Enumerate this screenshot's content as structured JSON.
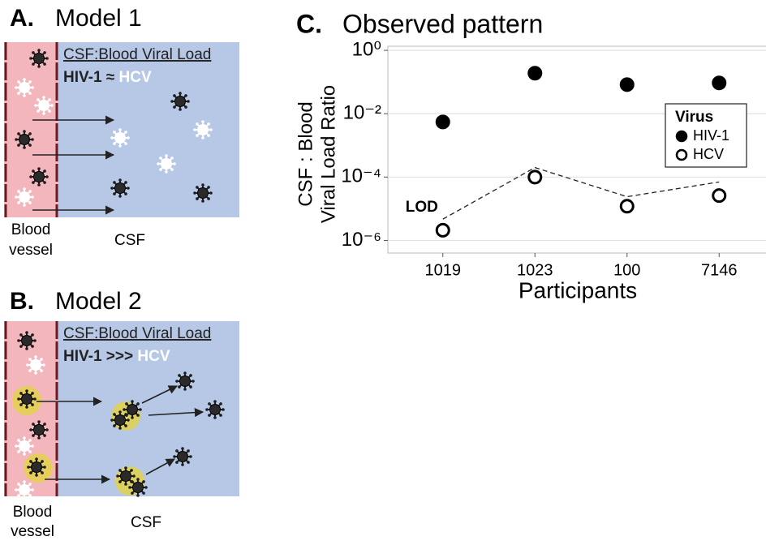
{
  "panel_a": {
    "letter": "A.",
    "title": "Model 1",
    "box_title": "CSF:Blood Viral Load",
    "relation": [
      "HIV-1",
      " ≈ ",
      "HCV"
    ],
    "vessel_label": [
      "Blood",
      "vessel"
    ],
    "csf_label": "CSF"
  },
  "panel_b": {
    "letter": "B.",
    "title": "Model 2",
    "box_title": "CSF:Blood Viral Load",
    "relation": [
      "HIV-1",
      " >>> ",
      "HCV"
    ],
    "vessel_label": [
      "Blood",
      "vessel"
    ],
    "csf_label": "CSF"
  },
  "chart_data": {
    "type": "scatter",
    "letter": "C.",
    "title": "Observed pattern",
    "x_label": "Participants",
    "y_label": [
      "CSF : Blood",
      "Viral Load Ratio"
    ],
    "categories": [
      "1019",
      "1023",
      "100",
      "7146"
    ],
    "yscale": "log",
    "ylim": [
      4e-07,
      1.35
    ],
    "yticks": [
      {
        "value": 1,
        "label": "10⁰"
      },
      {
        "value": 0.01,
        "label": "10⁻²"
      },
      {
        "value": 0.0001,
        "label": "10⁻⁴"
      },
      {
        "value": 1e-06,
        "label": "10⁻⁶"
      }
    ],
    "grid": true,
    "legend_title": "Virus",
    "legend_position": "right",
    "series": [
      {
        "name": "HIV-1",
        "color": "#000000",
        "marker": "filled",
        "values": [
          0.0055,
          0.19,
          0.083,
          0.094
        ]
      },
      {
        "name": "HCV",
        "color": "#000000",
        "marker": "open",
        "values": [
          2.1e-06,
          0.0001,
          1.2e-05,
          2.6e-05
        ]
      }
    ],
    "reference_line": {
      "name": "LOD",
      "style": "dashed",
      "values": [
        4.7e-06,
        0.0002,
        2.4e-05,
        7e-05
      ]
    }
  }
}
